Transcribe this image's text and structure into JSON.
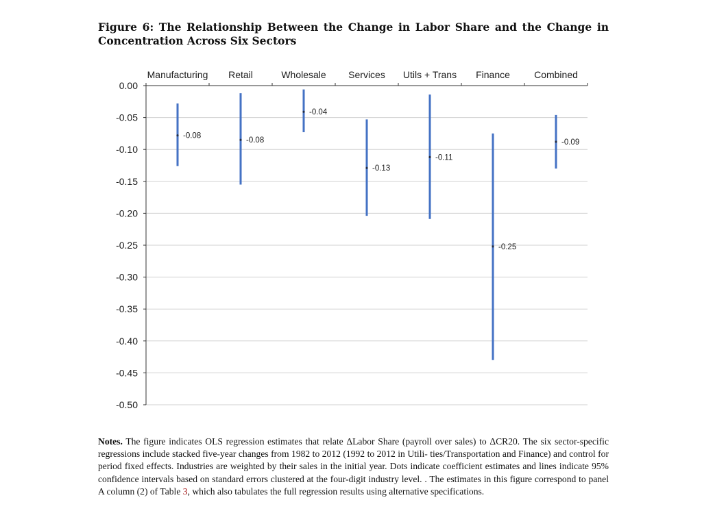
{
  "figure": {
    "title": "Figure 6: The Relationship Between the Change in Labor Share and the Change in Concentration Across Six Sectors"
  },
  "chart_data": {
    "type": "errorbar",
    "x_axis_position": "top",
    "categories": [
      "Manufacturing",
      "Retail",
      "Wholesale",
      "Services",
      "Utils + Trans",
      "Finance",
      "Combined"
    ],
    "estimates": [
      -0.078,
      -0.085,
      -0.041,
      -0.129,
      -0.112,
      -0.252,
      -0.088
    ],
    "data_labels": [
      "-0.08",
      "-0.08",
      "-0.04",
      "-0.13",
      "-0.11",
      "-0.25",
      "-0.09"
    ],
    "ci_lower": [
      -0.126,
      -0.155,
      -0.073,
      -0.204,
      -0.209,
      -0.43,
      -0.13
    ],
    "ci_upper": [
      -0.028,
      -0.012,
      -0.006,
      -0.053,
      -0.014,
      -0.075,
      -0.046
    ],
    "ylim": [
      -0.5,
      0.0
    ],
    "y_ticks": [
      0.0,
      -0.05,
      -0.1,
      -0.15,
      -0.2,
      -0.25,
      -0.3,
      -0.35,
      -0.4,
      -0.45,
      -0.5
    ],
    "y_tick_labels": [
      "0.00",
      "-0.05",
      "-0.10",
      "-0.15",
      "-0.20",
      "-0.25",
      "-0.30",
      "-0.35",
      "-0.40",
      "-0.45",
      "-0.50"
    ],
    "grid": true,
    "legend": "none",
    "colors": {
      "bar": "#4472c4",
      "dot": "#1f2d4a",
      "grid": "#d0d0d0",
      "axis": "#333333",
      "text": "#1a1a1a"
    }
  },
  "notes": {
    "label": "Notes.",
    "text_before_ref": "The figure indicates OLS regression estimates that relate ΔLabor Share (payroll over sales) to ΔCR20. The six sector-specific regressions include stacked five-year changes from 1982 to 2012 (1992 to 2012 in Utili- ties/Transportation and Finance) and control for period fixed effects. Industries are weighted by their sales in the initial year. Dots indicate coefficient estimates and lines indicate 95% confidence intervals based on standard errors clustered at the four-digit industry level. . The estimates in this figure correspond to panel A column (2) of Table",
    "table_ref": "3",
    "text_after_ref": ", which also tabulates the full regression results using alternative specifications."
  }
}
